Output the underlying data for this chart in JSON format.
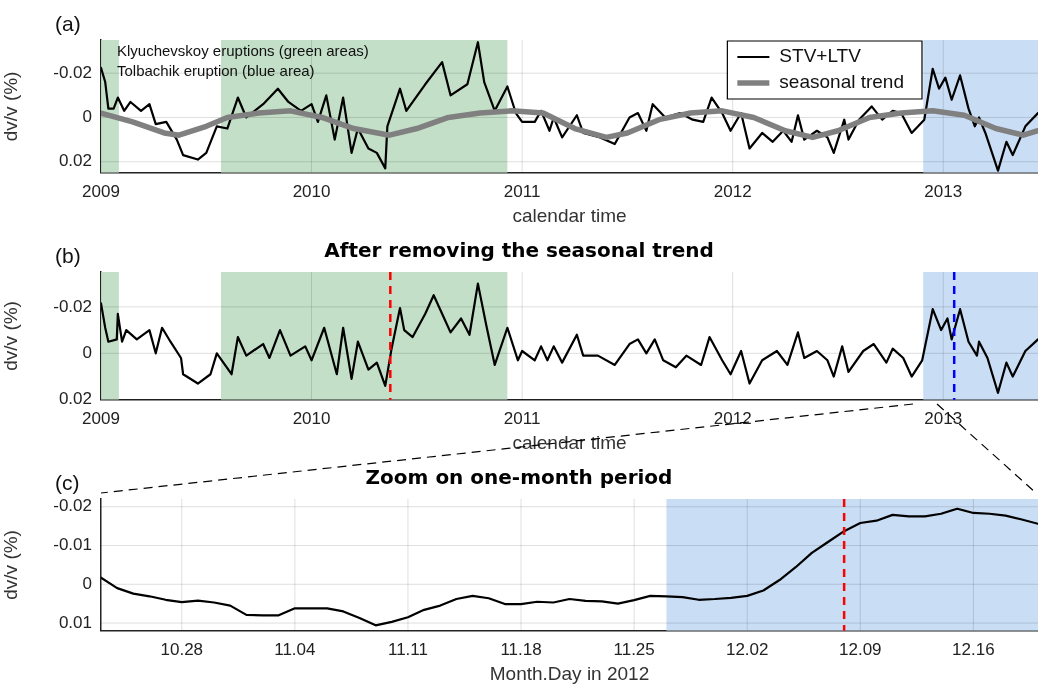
{
  "chart_data": [
    {
      "type": "line",
      "xlabel": "calendar time",
      "ylabel": "dv/v (%)",
      "xlim": [
        2009,
        2013.45
      ],
      "xticks": [
        2009,
        2010,
        2011,
        2012,
        2013
      ],
      "ylim": [
        0.025,
        -0.035
      ],
      "yticks": [
        -0.02,
        0,
        0.02
      ],
      "grid": true,
      "legend": "top right",
      "annotations": [
        "(a)",
        "Klyuchevskoy eruptions (green areas)",
        "Tolbachik eruption (blue area)"
      ],
      "bands": [
        {
          "axis": "x",
          "from": 2009,
          "to": 2009.085,
          "color": "#c3dfc7"
        },
        {
          "axis": "x",
          "from": 2009.57,
          "to": 2010.93,
          "color": "#c3dfc7"
        },
        {
          "axis": "x",
          "from": 2012.905,
          "to": 2013.45,
          "color": "#c9ddf4"
        }
      ],
      "series": [
        {
          "name": "STV+LTV",
          "color": "#000000",
          "x": [
            2009.0,
            2009.02,
            2009.035,
            2009.06,
            2009.08,
            2009.11,
            2009.14,
            2009.19,
            2009.23,
            2009.26,
            2009.31,
            2009.36,
            2009.39,
            2009.46,
            2009.5,
            2009.55,
            2009.6,
            2009.65,
            2009.69,
            2009.77,
            2009.84,
            2009.89,
            2009.95,
            2010.0,
            2010.03,
            2010.07,
            2010.11,
            2010.15,
            2010.19,
            2010.22,
            2010.27,
            2010.31,
            2010.35,
            2010.36,
            2010.42,
            2010.45,
            2010.54,
            2010.62,
            2010.66,
            2010.74,
            2010.79,
            2010.82,
            2010.87,
            2010.93,
            2010.97,
            2011.0,
            2011.06,
            2011.09,
            2011.13,
            2011.15,
            2011.19,
            2011.26,
            2011.29,
            2011.37,
            2011.44,
            2011.51,
            2011.55,
            2011.59,
            2011.62,
            2011.68,
            2011.75,
            2011.81,
            2011.86,
            2011.9,
            2011.95,
            2011.99,
            2012.04,
            2012.08,
            2012.14,
            2012.19,
            2012.24,
            2012.28,
            2012.31,
            2012.34,
            2012.4,
            2012.45,
            2012.48,
            2012.53,
            2012.55,
            2012.6,
            2012.66,
            2012.71,
            2012.76,
            2012.8,
            2012.85,
            2012.91,
            2012.95,
            2012.98,
            2013.01,
            2013.04,
            2013.08,
            2013.12,
            2013.15,
            2013.17,
            2013.2,
            2013.26,
            2013.3,
            2013.33,
            2013.39,
            2013.45
          ],
          "values": [
            -0.0224,
            -0.016,
            -0.004,
            -0.004,
            -0.009,
            -0.003,
            -0.007,
            -0.003,
            -0.006,
            0.003,
            0.002,
            0.01,
            0.017,
            0.019,
            0.016,
            0.004,
            0.005,
            -0.009,
            0.0,
            -0.006,
            -0.013,
            -0.007,
            -0.003,
            -0.006,
            0.002,
            -0.01,
            0.01,
            -0.009,
            0.016,
            0.005,
            0.014,
            0.016,
            0.023,
            0.004,
            -0.013,
            -0.003,
            -0.015,
            -0.025,
            -0.01,
            -0.015,
            -0.034,
            -0.016,
            -0.003,
            -0.014,
            -0.002,
            0.002,
            0.002,
            -0.003,
            0.006,
            0.0,
            0.009,
            -0.001,
            0.007,
            0.009,
            0.012,
            0.0,
            -0.002,
            0.006,
            -0.006,
            0.0,
            -0.002,
            0.001,
            0.002,
            -0.009,
            -0.002,
            0.006,
            -0.002,
            0.014,
            0.007,
            0.011,
            0.006,
            0.011,
            -0.001,
            0.01,
            0.006,
            0.009,
            0.016,
            0.001,
            0.01,
            0.001,
            -0.005,
            0.001,
            -0.003,
            -0.002,
            0.007,
            0.001,
            -0.022,
            -0.013,
            -0.018,
            -0.008,
            -0.019,
            -0.004,
            0.004,
            0.0,
            0.007,
            0.024,
            0.011,
            0.017,
            0.004,
            -0.002
          ]
        },
        {
          "name": "seasonal trend",
          "color": "#808080",
          "x": [
            2009.0,
            2009.15,
            2009.3,
            2009.37,
            2009.5,
            2009.6,
            2009.75,
            2009.9,
            2010.05,
            2010.2,
            2010.37,
            2010.5,
            2010.65,
            2010.8,
            2010.95,
            2011.1,
            2011.25,
            2011.4,
            2011.5,
            2011.65,
            2011.8,
            2011.95,
            2012.1,
            2012.25,
            2012.38,
            2012.5,
            2012.65,
            2012.8,
            2012.95,
            2013.1,
            2013.25,
            2013.38,
            2013.45
          ],
          "values": [
            -0.002,
            0.002,
            0.007,
            0.008,
            0.004,
            0.0,
            -0.002,
            -0.003,
            0.0,
            0.005,
            0.008,
            0.005,
            0.0,
            -0.002,
            -0.003,
            -0.002,
            0.005,
            0.009,
            0.007,
            0.001,
            -0.002,
            -0.003,
            0.0,
            0.006,
            0.009,
            0.006,
            0.0,
            -0.002,
            -0.003,
            -0.001,
            0.005,
            0.008,
            0.006
          ]
        }
      ]
    },
    {
      "type": "line",
      "title": "After removing the seasonal trend",
      "xlabel": "calendar time",
      "ylabel": "dv/v (%)",
      "xlim": [
        2009,
        2013.45
      ],
      "xticks": [
        2009,
        2010,
        2011,
        2012,
        2013
      ],
      "ylim": [
        0.02,
        -0.035
      ],
      "yticks": [
        -0.02,
        0,
        0.02
      ],
      "grid": true,
      "annotations": [
        "(b)"
      ],
      "bands": [
        {
          "axis": "x",
          "from": 2009,
          "to": 2009.085,
          "color": "#c3dfc7"
        },
        {
          "axis": "x",
          "from": 2009.57,
          "to": 2010.93,
          "color": "#c3dfc7"
        },
        {
          "axis": "x",
          "from": 2012.905,
          "to": 2013.45,
          "color": "#c9ddf4"
        }
      ],
      "ref_lines": [
        {
          "axis": "x",
          "value": 2010.374,
          "color": "#ff0000",
          "line_style": "dashed"
        },
        {
          "axis": "x",
          "value": 2013.052,
          "color": "#0000ff",
          "line_style": "dashed"
        }
      ],
      "series": [
        {
          "color": "#000000",
          "x": [
            2009.0,
            2009.02,
            2009.035,
            2009.075,
            2009.08,
            2009.1,
            2009.12,
            2009.17,
            2009.23,
            2009.26,
            2009.29,
            2009.33,
            2009.38,
            2009.39,
            2009.46,
            2009.52,
            2009.55,
            2009.62,
            2009.65,
            2009.69,
            2009.77,
            2009.8,
            2009.85,
            2009.9,
            2009.97,
            2010.0,
            2010.06,
            2010.12,
            2010.15,
            2010.19,
            2010.22,
            2010.27,
            2010.31,
            2010.35,
            2010.38,
            2010.42,
            2010.44,
            2010.48,
            2010.54,
            2010.58,
            2010.62,
            2010.66,
            2010.71,
            2010.75,
            2010.79,
            2010.83,
            2010.87,
            2010.93,
            2010.98,
            2011.0,
            2011.06,
            2011.09,
            2011.12,
            2011.15,
            2011.19,
            2011.26,
            2011.29,
            2011.36,
            2011.44,
            2011.51,
            2011.55,
            2011.59,
            2011.63,
            2011.67,
            2011.73,
            2011.78,
            2011.85,
            2011.89,
            2011.95,
            2011.99,
            2012.04,
            2012.08,
            2012.14,
            2012.21,
            2012.26,
            2012.31,
            2012.34,
            2012.4,
            2012.45,
            2012.48,
            2012.52,
            2012.55,
            2012.62,
            2012.67,
            2012.73,
            2012.76,
            2012.81,
            2012.85,
            2012.9,
            2012.95,
            2012.99,
            2013.02,
            2013.04,
            2013.08,
            2013.12,
            2013.16,
            2013.17,
            2013.21,
            2013.26,
            2013.3,
            2013.33,
            2013.39,
            2013.45
          ],
          "values": [
            -0.0215,
            -0.011,
            -0.005,
            -0.006,
            -0.017,
            -0.005,
            -0.01,
            -0.006,
            -0.01,
            0.0,
            -0.011,
            -0.005,
            0.002,
            0.009,
            0.013,
            0.009,
            0.0,
            0.009,
            -0.007,
            0.001,
            -0.004,
            0.002,
            -0.01,
            0.001,
            -0.003,
            0.003,
            -0.011,
            0.009,
            -0.011,
            0.011,
            -0.005,
            0.007,
            0.004,
            0.014,
            -0.002,
            -0.0195,
            -0.01,
            -0.007,
            -0.017,
            -0.025,
            -0.017,
            -0.009,
            -0.015,
            -0.008,
            -0.03,
            -0.012,
            0.005,
            -0.011,
            0.003,
            -0.001,
            0.003,
            -0.003,
            0.003,
            -0.003,
            0.004,
            -0.008,
            0.001,
            0.001,
            0.005,
            -0.004,
            -0.006,
            0.0,
            -0.006,
            0.003,
            0.006,
            0.001,
            0.005,
            -0.007,
            0.003,
            0.009,
            -0.001,
            0.013,
            0.003,
            -0.001,
            0.005,
            -0.009,
            0.002,
            -0.001,
            0.003,
            0.01,
            -0.003,
            0.008,
            -0.001,
            -0.004,
            0.004,
            -0.002,
            0.002,
            0.01,
            0.003,
            -0.019,
            -0.01,
            -0.015,
            -0.006,
            -0.019,
            -0.005,
            0.001,
            -0.005,
            0.002,
            0.017,
            0.004,
            0.01,
            -0.001,
            -0.006
          ]
        }
      ]
    },
    {
      "type": "line",
      "title": "Zoom on one-month period",
      "xlabel": "Month.Day in 2012",
      "ylabel": "dv/v (%)",
      "xlim": [
        "2012-10-23",
        "2012-12-20"
      ],
      "xticks": [
        {
          "value": "2012-10-28",
          "label": "10.28"
        },
        {
          "value": "2012-11-04",
          "label": "11.04"
        },
        {
          "value": "2012-11-11",
          "label": "11.11"
        },
        {
          "value": "2012-11-18",
          "label": "11.18"
        },
        {
          "value": "2012-11-25",
          "label": "11.25"
        },
        {
          "value": "2012-12-02",
          "label": "12.02"
        },
        {
          "value": "2012-12-09",
          "label": "12.09"
        },
        {
          "value": "2012-12-16",
          "label": "12.16"
        }
      ],
      "ylim": [
        0.012,
        -0.022
      ],
      "yticks": [
        -0.02,
        -0.01,
        0,
        0.01
      ],
      "grid": true,
      "annotations": [
        "(c)"
      ],
      "bands": [
        {
          "axis": "x",
          "from": "2012-11-27",
          "to": "2012-12-20",
          "color": "#c9ddf4"
        }
      ],
      "ref_lines": [
        {
          "axis": "x",
          "value": "2012-12-08",
          "color": "#ff0000",
          "line_style": "dashed"
        }
      ],
      "series": [
        {
          "color": "#000000",
          "x": [
            "2012-10-23",
            "2012-10-24",
            "2012-10-25",
            "2012-10-26",
            "2012-10-27",
            "2012-10-28",
            "2012-10-29",
            "2012-10-30",
            "2012-10-31",
            "2012-11-01",
            "2012-11-02",
            "2012-11-03",
            "2012-11-04",
            "2012-11-05",
            "2012-11-06",
            "2012-11-07",
            "2012-11-08",
            "2012-11-09",
            "2012-11-10",
            "2012-11-11",
            "2012-11-12",
            "2012-11-13",
            "2012-11-14",
            "2012-11-15",
            "2012-11-16",
            "2012-11-17",
            "2012-11-18",
            "2012-11-19",
            "2012-11-20",
            "2012-11-21",
            "2012-11-22",
            "2012-11-23",
            "2012-11-24",
            "2012-11-25",
            "2012-11-26",
            "2012-11-27",
            "2012-11-28",
            "2012-11-29",
            "2012-11-30",
            "2012-12-01",
            "2012-12-02",
            "2012-12-03",
            "2012-12-04",
            "2012-12-05",
            "2012-12-06",
            "2012-12-07",
            "2012-12-08",
            "2012-12-09",
            "2012-12-10",
            "2012-12-11",
            "2012-12-12",
            "2012-12-13",
            "2012-12-14",
            "2012-12-15",
            "2012-12-16",
            "2012-12-17",
            "2012-12-18",
            "2012-12-19",
            "2012-12-20"
          ],
          "values": [
            -0.0017,
            0.001,
            0.0024,
            0.0031,
            0.004,
            0.0046,
            0.0042,
            0.0047,
            0.0055,
            0.0079,
            0.008,
            0.008,
            0.0062,
            0.0062,
            0.0062,
            0.007,
            0.0087,
            0.0106,
            0.0097,
            0.0085,
            0.0066,
            0.0055,
            0.0038,
            0.003,
            0.0036,
            0.0051,
            0.0051,
            0.0045,
            0.0047,
            0.0038,
            0.0043,
            0.0044,
            0.005,
            0.0041,
            0.003,
            0.0031,
            0.0033,
            0.004,
            0.0038,
            0.0035,
            0.003,
            0.0016,
            -0.0011,
            -0.0044,
            -0.0081,
            -0.0109,
            -0.0137,
            -0.0158,
            -0.0164,
            -0.0179,
            -0.0175,
            -0.0175,
            -0.0182,
            -0.0195,
            -0.0184,
            -0.0182,
            -0.0177,
            -0.0167,
            -0.0156
          ]
        }
      ]
    }
  ]
}
